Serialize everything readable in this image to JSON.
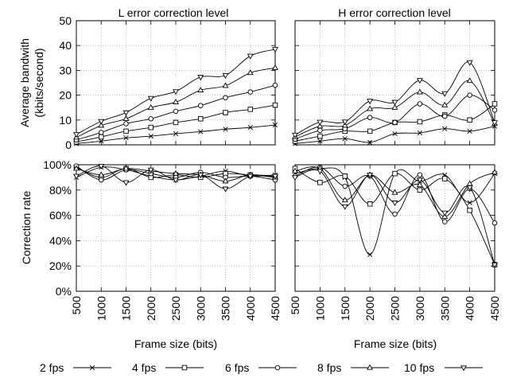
{
  "figure": {
    "x_axis_label_left": "Frame size (bits)",
    "x_axis_label_right": "Frame size (bits)",
    "top_ylabel_line1": "Average bandwith",
    "top_ylabel_line2": "(kbits/second)",
    "bottom_ylabel": "Correction rate"
  },
  "legend": [
    {
      "label": "2 fps",
      "marker": "x"
    },
    {
      "label": "4 fps",
      "marker": "square"
    },
    {
      "label": "6 fps",
      "marker": "circle"
    },
    {
      "label": "8 fps",
      "marker": "triangle-up"
    },
    {
      "label": "10 fps",
      "marker": "triangle-down"
    }
  ],
  "chart_data": [
    {
      "id": "bandwidth-L",
      "type": "line",
      "title": "L error correction level",
      "ylabel": "Average bandwith (kbits/second)",
      "x": [
        500,
        1000,
        1500,
        2000,
        2500,
        3000,
        3500,
        4000,
        4500
      ],
      "xlim": [
        500,
        4500
      ],
      "ylim": [
        0,
        50
      ],
      "yticks": [
        "0",
        "10",
        "20",
        "30",
        "40",
        "50"
      ],
      "grid": true,
      "series": [
        {
          "name": "2 fps",
          "values": [
            0.5,
            1.5,
            2.8,
            3.5,
            4.5,
            5.3,
            6.3,
            7.0,
            8.0
          ]
        },
        {
          "name": "4 fps",
          "values": [
            1.2,
            3.2,
            5.5,
            7.0,
            9.0,
            10.5,
            13.0,
            14.3,
            16.0
          ]
        },
        {
          "name": "6 fps",
          "values": [
            2.0,
            5.0,
            8.5,
            10.5,
            13.5,
            15.8,
            19.0,
            21.3,
            24.0
          ]
        },
        {
          "name": "8 fps",
          "values": [
            3.0,
            7.8,
            10.5,
            15.0,
            17.2,
            22.0,
            23.8,
            29.0,
            31.0
          ]
        },
        {
          "name": "10 fps",
          "values": [
            4.2,
            9.5,
            13.0,
            18.8,
            21.5,
            27.3,
            28.0,
            35.8,
            38.5
          ]
        }
      ]
    },
    {
      "id": "bandwidth-H",
      "type": "line",
      "title": "H error correction level",
      "x": [
        500,
        1000,
        1500,
        2000,
        2500,
        3000,
        3500,
        4000,
        4500
      ],
      "xlim": [
        500,
        4500
      ],
      "ylim": [
        0,
        50
      ],
      "grid": true,
      "series": [
        {
          "name": "2 fps",
          "values": [
            0.5,
            1.5,
            2.5,
            1.0,
            4.5,
            4.8,
            6.5,
            5.5,
            7.5
          ]
        },
        {
          "name": "4 fps",
          "values": [
            1.5,
            3.5,
            5.5,
            5.5,
            9.0,
            9.3,
            12.0,
            10.0,
            16.5
          ]
        },
        {
          "name": "6 fps",
          "values": [
            2.3,
            5.8,
            6.5,
            11.0,
            9.0,
            16.5,
            11.5,
            20.0,
            14.0
          ]
        },
        {
          "name": "8 fps",
          "values": [
            3.2,
            7.5,
            7.8,
            14.5,
            15.0,
            21.2,
            16.0,
            25.8,
            8.5
          ]
        },
        {
          "name": "10 fps",
          "values": [
            4.0,
            9.2,
            9.3,
            17.7,
            17.2,
            26.0,
            20.7,
            33.2,
            9.0
          ]
        }
      ]
    },
    {
      "id": "correction-L",
      "type": "line",
      "ylabel": "Correction rate",
      "x": [
        500,
        1000,
        1500,
        2000,
        2500,
        3000,
        3500,
        4000,
        4500
      ],
      "xtick_labels": [
        "500",
        "1000",
        "1500",
        "2000",
        "2500",
        "3000",
        "3500",
        "4000",
        "4500"
      ],
      "xlabel": "Frame size (bits)",
      "xlim": [
        500,
        4500
      ],
      "ylim": [
        0,
        100
      ],
      "yticks": [
        "0%",
        "20%",
        "40%",
        "60%",
        "80%",
        "100%"
      ],
      "grid": true,
      "series": [
        {
          "name": "2 fps",
          "values": [
            90,
            98,
            96,
            91,
            88,
            91,
            95,
            91,
            92
          ]
        },
        {
          "name": "4 fps",
          "values": [
            98,
            90,
            97,
            90,
            92,
            90,
            93,
            92,
            90
          ]
        },
        {
          "name": "6 fps",
          "values": [
            99,
            88,
            96,
            93,
            90,
            94,
            90,
            91,
            88
          ]
        },
        {
          "name": "8 fps",
          "values": [
            97,
            92,
            97,
            95,
            93,
            92,
            87,
            92,
            90
          ]
        },
        {
          "name": "10 fps",
          "values": [
            91,
            99,
            86,
            96,
            88,
            92,
            81,
            91,
            91
          ]
        }
      ]
    },
    {
      "id": "correction-H",
      "type": "line",
      "x": [
        500,
        1000,
        1500,
        2000,
        2500,
        3000,
        3500,
        4000,
        4500
      ],
      "xtick_labels": [
        "500",
        "1000",
        "1500",
        "2000",
        "2500",
        "3000",
        "3500",
        "4000",
        "4500"
      ],
      "xlabel": "Frame size (bits)",
      "xlim": [
        500,
        4500
      ],
      "ylim": [
        0,
        100
      ],
      "grid": true,
      "series": [
        {
          "name": "2 fps",
          "values": [
            93,
            97,
            90,
            29,
            93,
            87,
            92,
            70,
            93
          ]
        },
        {
          "name": "4 fps",
          "values": [
            97,
            86,
            91,
            69,
            93,
            80,
            89,
            64,
            21
          ]
        },
        {
          "name": "6 fps",
          "values": [
            91,
            98,
            83,
            91,
            61,
            92,
            55,
            81,
            54
          ]
        },
        {
          "name": "8 fps",
          "values": [
            95,
            97,
            72,
            92,
            78,
            84,
            59,
            85,
            94
          ]
        },
        {
          "name": "10 fps",
          "values": [
            90,
            95,
            67,
            92,
            70,
            88,
            62,
            82,
            21
          ]
        }
      ]
    }
  ]
}
